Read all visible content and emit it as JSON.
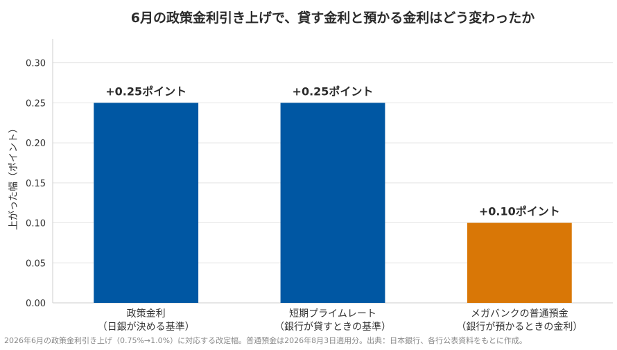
{
  "chart_data": {
    "type": "bar",
    "title": "6月の政策金利引き上げで、貸す金利と預かる金利はどう変わったか",
    "xlabel": "",
    "ylabel": "上がった幅（ポイント）",
    "ylim": [
      0,
      0.33
    ],
    "yticks": [
      "0.00",
      "0.05",
      "0.10",
      "0.15",
      "0.20",
      "0.25",
      "0.30"
    ],
    "grid": true,
    "categories": [
      [
        "政策金利",
        "（日銀が決める基準）"
      ],
      [
        "短期プライムレート",
        "（銀行が貸すときの基準）"
      ],
      [
        "メガバンクの普通預金",
        "（銀行が預かるときの金利）"
      ]
    ],
    "values": [
      0.25,
      0.25,
      0.1
    ],
    "data_labels": [
      "+0.25ポイント",
      "+0.25ポイント",
      "+0.10ポイント"
    ],
    "colors": [
      "#0057a3",
      "#0057a3",
      "#d97706"
    ],
    "grid_color": "#e3e3e3",
    "axis_color": "#cccccc"
  },
  "footnote": "2026年6月の政策金利引き上げ（0.75%→1.0%）に対応する改定幅。普通預金は2026年8月3日適用分。出典：日本銀行、各行公表資料をもとに作成。"
}
